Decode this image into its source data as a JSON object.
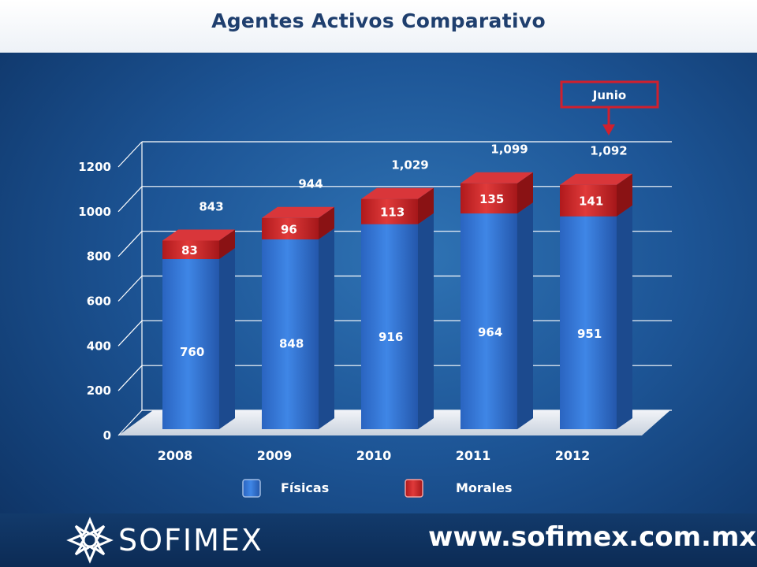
{
  "title": "Agentes Activos Comparativo",
  "annotation": {
    "label": "Junio",
    "target_category": "2012",
    "color": "#d0202e"
  },
  "footer": {
    "logo_text": "SOFIMEX",
    "website": "www.sofimex.com.mx"
  },
  "chart_data": {
    "type": "bar",
    "stacked": true,
    "categories": [
      "2008",
      "2009",
      "2010",
      "2011",
      "2012"
    ],
    "series": [
      {
        "name": "Físicas",
        "color": "#2e6fcf",
        "values": [
          760,
          848,
          916,
          964,
          951
        ]
      },
      {
        "name": "Morales",
        "color": "#c0282a",
        "values": [
          83,
          96,
          113,
          135,
          141
        ]
      }
    ],
    "totals": [
      "843",
      "944",
      "1,029",
      "1,099",
      "1,092"
    ],
    "ylim": [
      0,
      1200
    ],
    "yticks": [
      "0",
      "200",
      "400",
      "600",
      "800",
      "1000",
      "1200"
    ],
    "legend_position": "bottom",
    "grid": true
  }
}
